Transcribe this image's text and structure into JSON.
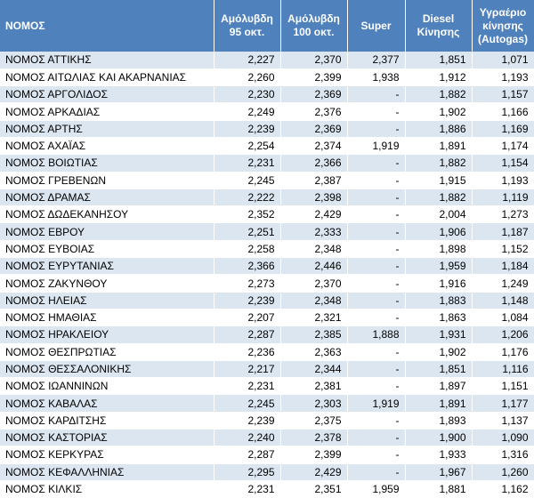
{
  "table": {
    "header": [
      [
        "ΝΟΜΟΣ"
      ],
      [
        "Αμόλυβδη",
        "95 οκτ."
      ],
      [
        "Αμόλυβδη",
        "100 οκτ."
      ],
      [
        "Super"
      ],
      [
        "Diesel",
        "Κίνησης"
      ],
      [
        "Υγραέριο",
        "κίνησης",
        "(Autogas)"
      ]
    ],
    "rows": [
      [
        "ΝΟΜΟΣ ΑΤΤΙΚΗΣ",
        "2,227",
        "2,370",
        "2,377",
        "1,851",
        "1,071"
      ],
      [
        "ΝΟΜΟΣ ΑΙΤΩΛΙΑΣ ΚΑΙ ΑΚΑΡΝΑΝΙΑΣ",
        "2,260",
        "2,399",
        "1,938",
        "1,912",
        "1,193"
      ],
      [
        "ΝΟΜΟΣ ΑΡΓΟΛΙΔΟΣ",
        "2,230",
        "2,369",
        "-",
        "1,882",
        "1,157"
      ],
      [
        "ΝΟΜΟΣ ΑΡΚΑΔΙΑΣ",
        "2,249",
        "2,376",
        "-",
        "1,902",
        "1,166"
      ],
      [
        "ΝΟΜΟΣ ΑΡΤΗΣ",
        "2,239",
        "2,369",
        "-",
        "1,886",
        "1,169"
      ],
      [
        "ΝΟΜΟΣ ΑΧΑΪΑΣ",
        "2,254",
        "2,374",
        "1,919",
        "1,891",
        "1,174"
      ],
      [
        "ΝΟΜΟΣ ΒΟΙΩΤΙΑΣ",
        "2,231",
        "2,366",
        "-",
        "1,882",
        "1,154"
      ],
      [
        "ΝΟΜΟΣ ΓΡΕΒΕΝΩΝ",
        "2,245",
        "2,387",
        "-",
        "1,915",
        "1,193"
      ],
      [
        "ΝΟΜΟΣ ΔΡΑΜΑΣ",
        "2,222",
        "2,398",
        "-",
        "1,882",
        "1,119"
      ],
      [
        "ΝΟΜΟΣ ΔΩΔΕΚΑΝΗΣΟΥ",
        "2,352",
        "2,429",
        "-",
        "2,004",
        "1,273"
      ],
      [
        "ΝΟΜΟΣ ΕΒΡΟΥ",
        "2,251",
        "2,333",
        "-",
        "1,906",
        "1,187"
      ],
      [
        "ΝΟΜΟΣ ΕΥΒΟΙΑΣ",
        "2,258",
        "2,348",
        "-",
        "1,898",
        "1,152"
      ],
      [
        "ΝΟΜΟΣ ΕΥΡΥΤΑΝΙΑΣ",
        "2,366",
        "2,446",
        "-",
        "1,959",
        "1,184"
      ],
      [
        "ΝΟΜΟΣ ΖΑΚΥΝΘΟΥ",
        "2,273",
        "2,370",
        "-",
        "1,916",
        "1,249"
      ],
      [
        "ΝΟΜΟΣ ΗΛΕΙΑΣ",
        "2,239",
        "2,348",
        "-",
        "1,883",
        "1,148"
      ],
      [
        "ΝΟΜΟΣ ΗΜΑΘΙΑΣ",
        "2,207",
        "2,321",
        "-",
        "1,863",
        "1,084"
      ],
      [
        "ΝΟΜΟΣ ΗΡΑΚΛΕΙΟΥ",
        "2,287",
        "2,385",
        "1,888",
        "1,931",
        "1,206"
      ],
      [
        "ΝΟΜΟΣ ΘΕΣΠΡΩΤΙΑΣ",
        "2,236",
        "2,363",
        "-",
        "1,902",
        "1,176"
      ],
      [
        "ΝΟΜΟΣ ΘΕΣΣΑΛΟΝΙΚΗΣ",
        "2,217",
        "2,344",
        "-",
        "1,851",
        "1,116"
      ],
      [
        "ΝΟΜΟΣ ΙΩΑΝΝΙΝΩΝ",
        "2,231",
        "2,381",
        "-",
        "1,897",
        "1,151"
      ],
      [
        "ΝΟΜΟΣ ΚΑΒΑΛΑΣ",
        "2,245",
        "2,303",
        "1,919",
        "1,891",
        "1,177"
      ],
      [
        "ΝΟΜΟΣ ΚΑΡΔΙΤΣΗΣ",
        "2,239",
        "2,375",
        "-",
        "1,893",
        "1,137"
      ],
      [
        "ΝΟΜΟΣ ΚΑΣΤΟΡΙΑΣ",
        "2,240",
        "2,378",
        "-",
        "1,900",
        "1,090"
      ],
      [
        "ΝΟΜΟΣ ΚΕΡΚΥΡΑΣ",
        "2,287",
        "2,399",
        "-",
        "1,933",
        "1,316"
      ],
      [
        "ΝΟΜΟΣ ΚΕΦΑΛΛΗΝΙΑΣ",
        "2,295",
        "2,429",
        "-",
        "1,967",
        "1,260"
      ],
      [
        "ΝΟΜΟΣ ΚΙΛΚΙΣ",
        "2,231",
        "2,351",
        "1,959",
        "1,881",
        "1,162"
      ]
    ]
  }
}
